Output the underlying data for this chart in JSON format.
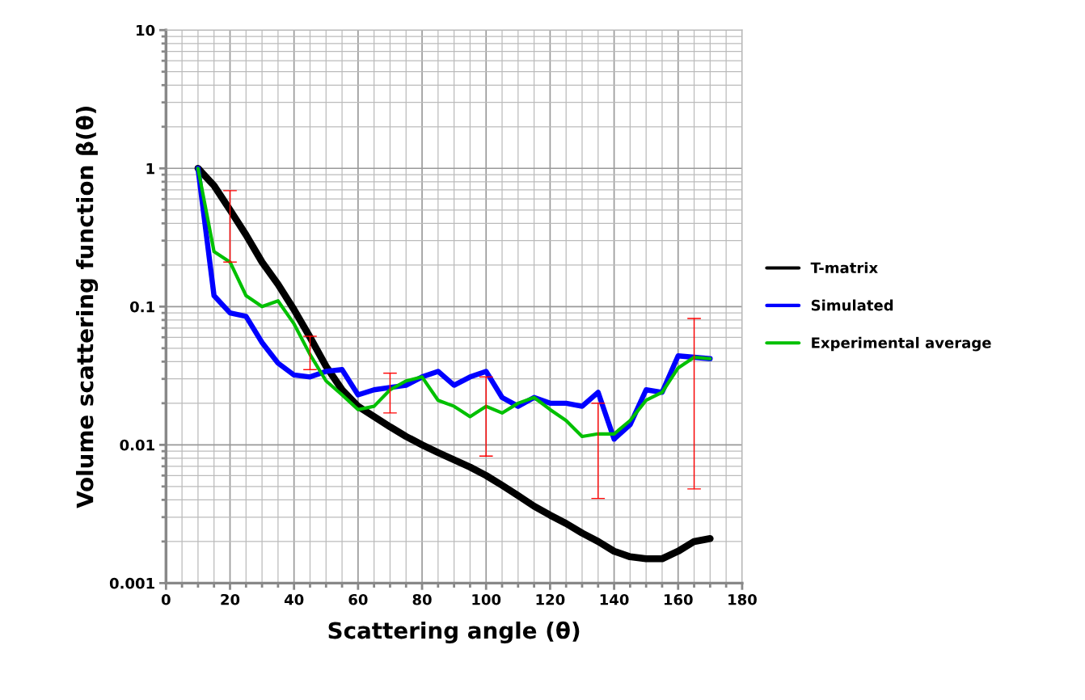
{
  "chart_data": {
    "type": "line",
    "xlabel": "Scattering angle (θ)",
    "ylabel": "Volume scattering function β(θ)",
    "x": [
      10,
      15,
      20,
      25,
      30,
      35,
      40,
      45,
      50,
      55,
      60,
      65,
      70,
      75,
      80,
      85,
      90,
      95,
      100,
      105,
      110,
      115,
      120,
      125,
      130,
      135,
      140,
      145,
      150,
      155,
      160,
      165,
      170
    ],
    "series": [
      {
        "name": "T-matrix",
        "color": "#000000",
        "values": [
          1,
          0.75,
          0.5,
          0.33,
          0.21,
          0.145,
          0.095,
          0.06,
          0.037,
          0.025,
          0.019,
          0.016,
          0.0135,
          0.0115,
          0.01,
          0.0088,
          0.0078,
          0.0069,
          0.006,
          0.0051,
          0.0043,
          0.0036,
          0.0031,
          0.0027,
          0.0023,
          0.002,
          0.0017,
          0.00155,
          0.0015,
          0.0015,
          0.0017,
          0.002,
          0.0021
        ]
      },
      {
        "name": "Simulated",
        "color": "#0000ff",
        "values": [
          1,
          0.12,
          0.09,
          0.085,
          0.055,
          0.039,
          0.032,
          0.031,
          0.034,
          0.035,
          0.023,
          0.025,
          0.026,
          0.027,
          0.031,
          0.034,
          0.027,
          0.031,
          0.034,
          0.022,
          0.019,
          0.022,
          0.02,
          0.02,
          0.019,
          0.024,
          0.011,
          0.014,
          0.025,
          0.024,
          0.044,
          0.043,
          0.042
        ]
      },
      {
        "name": "Experimental average",
        "color": "#00c000",
        "values": [
          1,
          0.25,
          0.21,
          0.12,
          0.1,
          0.11,
          0.075,
          0.045,
          0.029,
          0.023,
          0.018,
          0.019,
          0.025,
          0.029,
          0.031,
          0.021,
          0.019,
          0.016,
          0.019,
          0.017,
          0.02,
          0.022,
          0.018,
          0.015,
          0.0115,
          0.012,
          0.012,
          0.015,
          0.021,
          0.024,
          0.036,
          0.043,
          0.042
        ],
        "errors": [
          null,
          null,
          [
            0.21,
            0.69
          ],
          null,
          null,
          null,
          null,
          [
            0.035,
            0.061
          ],
          null,
          null,
          null,
          null,
          [
            0.017,
            0.033
          ],
          null,
          null,
          null,
          null,
          null,
          [
            0.0083,
            0.031
          ],
          null,
          null,
          null,
          null,
          null,
          null,
          [
            0.0041,
            0.02
          ],
          null,
          null,
          null,
          null,
          null,
          [
            0.0048,
            0.082
          ],
          null
        ]
      }
    ],
    "log": "y",
    "xlim": [
      0,
      180
    ],
    "xticks": [
      0,
      20,
      40,
      60,
      80,
      100,
      120,
      140,
      160,
      180
    ],
    "ylim": [
      0.001,
      10
    ],
    "yticks": [
      0.001,
      0.01,
      0.1,
      1,
      10
    ],
    "grid": true,
    "legend": "right",
    "marker": "none",
    "line_style": "solid"
  }
}
